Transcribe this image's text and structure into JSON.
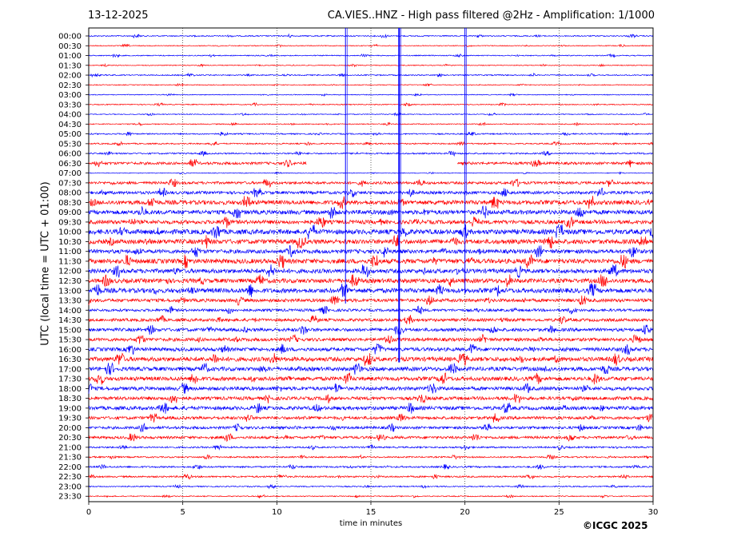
{
  "header": {
    "date": "13-12-2025",
    "title": "CA.VIES..HNZ - High pass filtered @2Hz - Amplification: 1/1000"
  },
  "footer": {
    "copyright": "©ICGC 2025"
  },
  "chart_data": {
    "type": "line",
    "chart_kind": "seismic helicorder",
    "title": "CA.VIES..HNZ - High pass filtered @2Hz - Amplification: 1/1000",
    "xlabel": "time in minutes",
    "ylabel": "UTC (local time = UTC + 01:00)",
    "xlim": [
      0,
      30
    ],
    "x_ticks": [
      0,
      5,
      10,
      15,
      20,
      25,
      30
    ],
    "vertical_gridlines": [
      5,
      10,
      15,
      20,
      25
    ],
    "grid": "vertical dotted",
    "series_colors": [
      "#0000ff",
      "#ff0000"
    ],
    "row_labels": [
      "00:00",
      "00:30",
      "01:00",
      "01:30",
      "02:00",
      "02:30",
      "03:00",
      "03:30",
      "04:00",
      "04:30",
      "05:00",
      "05:30",
      "06:00",
      "06:30",
      "07:00",
      "07:30",
      "08:00",
      "08:30",
      "09:00",
      "09:30",
      "10:00",
      "10:30",
      "11:00",
      "11:30",
      "12:00",
      "12:30",
      "13:00",
      "13:30",
      "14:00",
      "14:30",
      "15:00",
      "15:30",
      "16:00",
      "16:30",
      "17:00",
      "17:30",
      "18:00",
      "18:30",
      "19:00",
      "19:30",
      "20:00",
      "20:30",
      "21:00",
      "21:30",
      "22:00",
      "22:30",
      "23:00",
      "23:30"
    ],
    "row_noise_level": [
      0.7,
      0.5,
      0.6,
      0.5,
      0.7,
      0.5,
      0.5,
      0.6,
      0.5,
      0.6,
      0.8,
      0.8,
      0.9,
      1.6,
      0.4,
      1.6,
      1.8,
      2.6,
      2.6,
      2.4,
      3.0,
      2.8,
      2.4,
      2.8,
      2.6,
      2.6,
      2.8,
      2.0,
      1.6,
      1.8,
      2.0,
      2.0,
      2.2,
      2.6,
      2.4,
      2.4,
      2.2,
      2.0,
      2.2,
      1.8,
      1.6,
      1.6,
      1.0,
      0.9,
      1.0,
      1.0,
      0.7,
      0.6
    ],
    "data_gap": {
      "row": "06:30",
      "from_min": 11.6,
      "to_min": 19.6
    },
    "large_events": [
      {
        "minute": 13.65,
        "rows_from": "00:00",
        "rows_to": "13:30"
      },
      {
        "minute": 16.5,
        "rows_from": "00:00",
        "rows_to": "16:30"
      },
      {
        "minute": 20.0,
        "rows_from": "00:00",
        "rows_to": "13:00"
      }
    ]
  }
}
